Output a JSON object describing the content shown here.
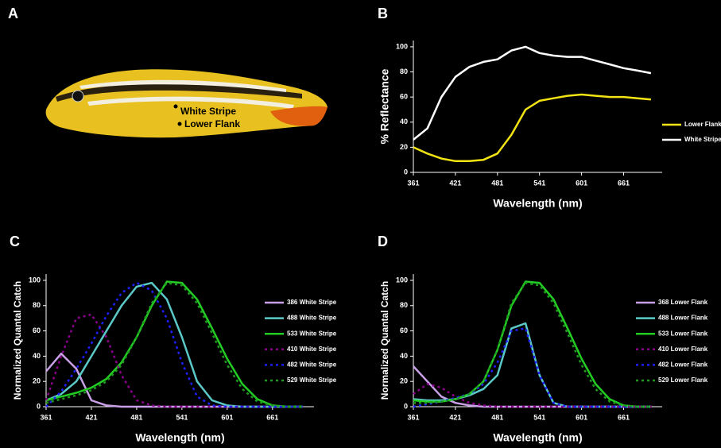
{
  "photo": {
    "label": "A",
    "annotations": [
      "White Stripe",
      "Lower Flank"
    ]
  },
  "chart_data": [
    {
      "type": "line",
      "label": "B",
      "ylabel": "% Reflectance",
      "xlabel": "Wavelength (nm)",
      "x": [
        361,
        381,
        401,
        421,
        441,
        461,
        481,
        501,
        521,
        541,
        561,
        581,
        601,
        621,
        641,
        661,
        681,
        700
      ],
      "xlim": [
        361,
        716
      ],
      "xticks": [
        361,
        421,
        481,
        541,
        601,
        661
      ],
      "ylim": [
        0,
        105
      ],
      "yticks": [
        0,
        20,
        40,
        60,
        80,
        100
      ],
      "series": [
        {
          "name": "Lower Flank",
          "color": "#f2e313",
          "dash": false,
          "values": [
            20,
            15,
            11,
            9,
            9,
            10,
            15,
            30,
            50,
            57,
            59,
            61,
            62,
            61,
            60,
            60,
            59,
            58
          ]
        },
        {
          "name": "White Stripe",
          "color": "#ffffff",
          "dash": false,
          "values": [
            26,
            35,
            60,
            76,
            84,
            88,
            90,
            97,
            100,
            95,
            93,
            92,
            92,
            89,
            86,
            83,
            81,
            79
          ]
        }
      ]
    },
    {
      "type": "line",
      "label": "C",
      "ylabel": "Normalized Quantal Catch",
      "xlabel": "Wavelength (nm)",
      "x": [
        361,
        381,
        401,
        421,
        441,
        461,
        481,
        501,
        521,
        541,
        561,
        581,
        601,
        621,
        641,
        661,
        681,
        701
      ],
      "xlim": [
        361,
        716
      ],
      "xticks": [
        361,
        421,
        481,
        541,
        601,
        661
      ],
      "ylim": [
        0,
        105
      ],
      "yticks": [
        0,
        20,
        40,
        60,
        80,
        100
      ],
      "series": [
        {
          "name": "386 White Stripe",
          "color": "#c9a0e8",
          "dash": false,
          "values": [
            28,
            42,
            30,
            5,
            1,
            0,
            0,
            0,
            0,
            0,
            0,
            0,
            0,
            0,
            0,
            0,
            0,
            0
          ]
        },
        {
          "name": "488 White Stripe",
          "color": "#5bc8c8",
          "dash": false,
          "values": [
            5,
            10,
            20,
            40,
            60,
            80,
            95,
            98,
            85,
            55,
            20,
            5,
            1,
            0,
            0,
            0,
            0,
            0
          ]
        },
        {
          "name": "533 White Stripe",
          "color": "#22cc22",
          "dash": false,
          "values": [
            5,
            8,
            11,
            15,
            22,
            35,
            55,
            80,
            99,
            98,
            85,
            62,
            38,
            18,
            6,
            1,
            0,
            0
          ]
        },
        {
          "name": "410 White Stripe",
          "color": "#8b008b",
          "dash": true,
          "values": [
            5,
            40,
            70,
            73,
            55,
            25,
            5,
            1,
            0,
            0,
            0,
            0,
            0,
            0,
            0,
            0,
            0,
            0
          ]
        },
        {
          "name": "482 White Stripe",
          "color": "#1f1fff",
          "dash": true,
          "values": [
            0,
            12,
            30,
            50,
            72,
            90,
            98,
            92,
            70,
            35,
            8,
            1,
            0,
            0,
            0,
            0,
            0,
            0
          ]
        },
        {
          "name": "529 White Stripe",
          "color": "#1e9b1e",
          "dash": true,
          "values": [
            3,
            6,
            9,
            13,
            20,
            33,
            55,
            82,
            98,
            96,
            82,
            58,
            33,
            14,
            4,
            1,
            0,
            0
          ]
        }
      ]
    },
    {
      "type": "line",
      "label": "D",
      "ylabel": "Normalized Quantal Catch",
      "xlabel": "Wavelength (nm)",
      "x": [
        361,
        381,
        401,
        421,
        441,
        461,
        481,
        501,
        521,
        541,
        561,
        581,
        601,
        621,
        641,
        661,
        681,
        701
      ],
      "xlim": [
        361,
        716
      ],
      "xticks": [
        361,
        421,
        481,
        541,
        601,
        661
      ],
      "ylim": [
        0,
        105
      ],
      "yticks": [
        0,
        20,
        40,
        60,
        80,
        100
      ],
      "series": [
        {
          "name": "368 Lower Flank",
          "color": "#c9a0e8",
          "dash": false,
          "values": [
            32,
            20,
            8,
            3,
            1,
            0,
            0,
            0,
            0,
            0,
            0,
            0,
            0,
            0,
            0,
            0,
            0,
            0
          ]
        },
        {
          "name": "488 Lower Flank",
          "color": "#5bc8c8",
          "dash": false,
          "values": [
            6,
            5,
            5,
            6,
            9,
            14,
            25,
            62,
            66,
            25,
            3,
            0,
            0,
            0,
            0,
            0,
            0,
            0
          ]
        },
        {
          "name": "533 Lower Flank",
          "color": "#22cc22",
          "dash": false,
          "values": [
            5,
            4,
            4,
            6,
            10,
            20,
            45,
            80,
            99,
            98,
            85,
            62,
            38,
            18,
            6,
            1,
            0,
            0
          ]
        },
        {
          "name": "410 Lower Flank",
          "color": "#8b008b",
          "dash": true,
          "values": [
            10,
            18,
            15,
            8,
            3,
            1,
            0,
            0,
            0,
            0,
            0,
            0,
            0,
            0,
            0,
            0,
            0,
            0
          ]
        },
        {
          "name": "482 Lower Flank",
          "color": "#1f1fff",
          "dash": true,
          "values": [
            0,
            2,
            4,
            7,
            10,
            18,
            35,
            60,
            62,
            25,
            3,
            0,
            0,
            0,
            0,
            0,
            0,
            0
          ]
        },
        {
          "name": "529 Lower Flank",
          "color": "#1e9b1e",
          "dash": true,
          "values": [
            3,
            3,
            4,
            6,
            10,
            20,
            45,
            82,
            98,
            96,
            82,
            58,
            33,
            14,
            4,
            1,
            0,
            0
          ]
        }
      ]
    }
  ]
}
